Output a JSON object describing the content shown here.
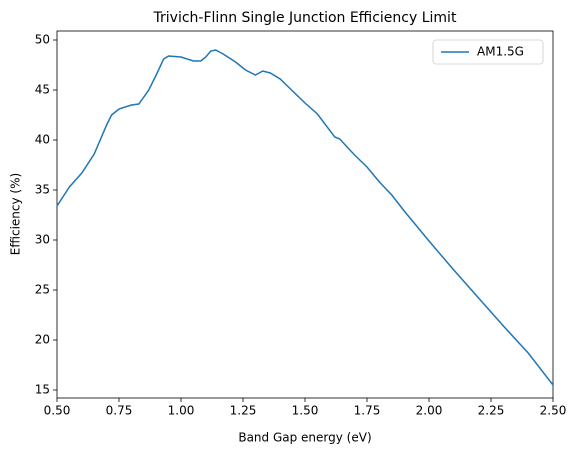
{
  "chart_data": {
    "type": "line",
    "title": "Trivich-Flinn Single Junction Efficiency Limit",
    "x_label": "Band Gap energy (eV)",
    "y_label": "Efficiency (%)",
    "x": [
      0.5,
      0.55,
      0.6,
      0.65,
      0.7,
      0.72,
      0.75,
      0.8,
      0.83,
      0.87,
      0.9,
      0.93,
      0.95,
      1.0,
      1.05,
      1.08,
      1.1,
      1.12,
      1.14,
      1.17,
      1.22,
      1.26,
      1.3,
      1.33,
      1.36,
      1.4,
      1.45,
      1.5,
      1.55,
      1.62,
      1.64,
      1.7,
      1.75,
      1.8,
      1.85,
      1.9,
      2.0,
      2.1,
      2.2,
      2.3,
      2.4,
      2.5
    ],
    "series": [
      {
        "name": "AM1.5G",
        "color": "#1f77b4",
        "values": [
          33.4,
          35.3,
          36.7,
          38.6,
          41.5,
          42.5,
          43.1,
          43.5,
          43.6,
          45.0,
          46.5,
          48.1,
          48.4,
          48.3,
          47.9,
          47.9,
          48.3,
          48.9,
          49.0,
          48.6,
          47.8,
          47.0,
          46.5,
          46.9,
          46.7,
          46.1,
          44.9,
          43.7,
          42.6,
          40.3,
          40.1,
          38.5,
          37.3,
          35.8,
          34.5,
          32.9,
          29.9,
          27.0,
          24.2,
          21.4,
          18.7,
          15.5
        ]
      }
    ],
    "xlim": [
      0.5,
      2.5
    ],
    "xticks": [
      {
        "value": 0.5,
        "label": "0.50"
      },
      {
        "value": 0.75,
        "label": "0.75"
      },
      {
        "value": 1.0,
        "label": "1.00"
      },
      {
        "value": 1.25,
        "label": "1.25"
      },
      {
        "value": 1.5,
        "label": "1.50"
      },
      {
        "value": 1.75,
        "label": "1.75"
      },
      {
        "value": 2.0,
        "label": "2.00"
      },
      {
        "value": 2.25,
        "label": "2.25"
      },
      {
        "value": 2.5,
        "label": "2.50"
      }
    ],
    "ylim": [
      14.2,
      50.9
    ],
    "yticks": [
      15,
      20,
      25,
      30,
      35,
      40,
      45,
      50
    ],
    "legend": "upper right"
  }
}
